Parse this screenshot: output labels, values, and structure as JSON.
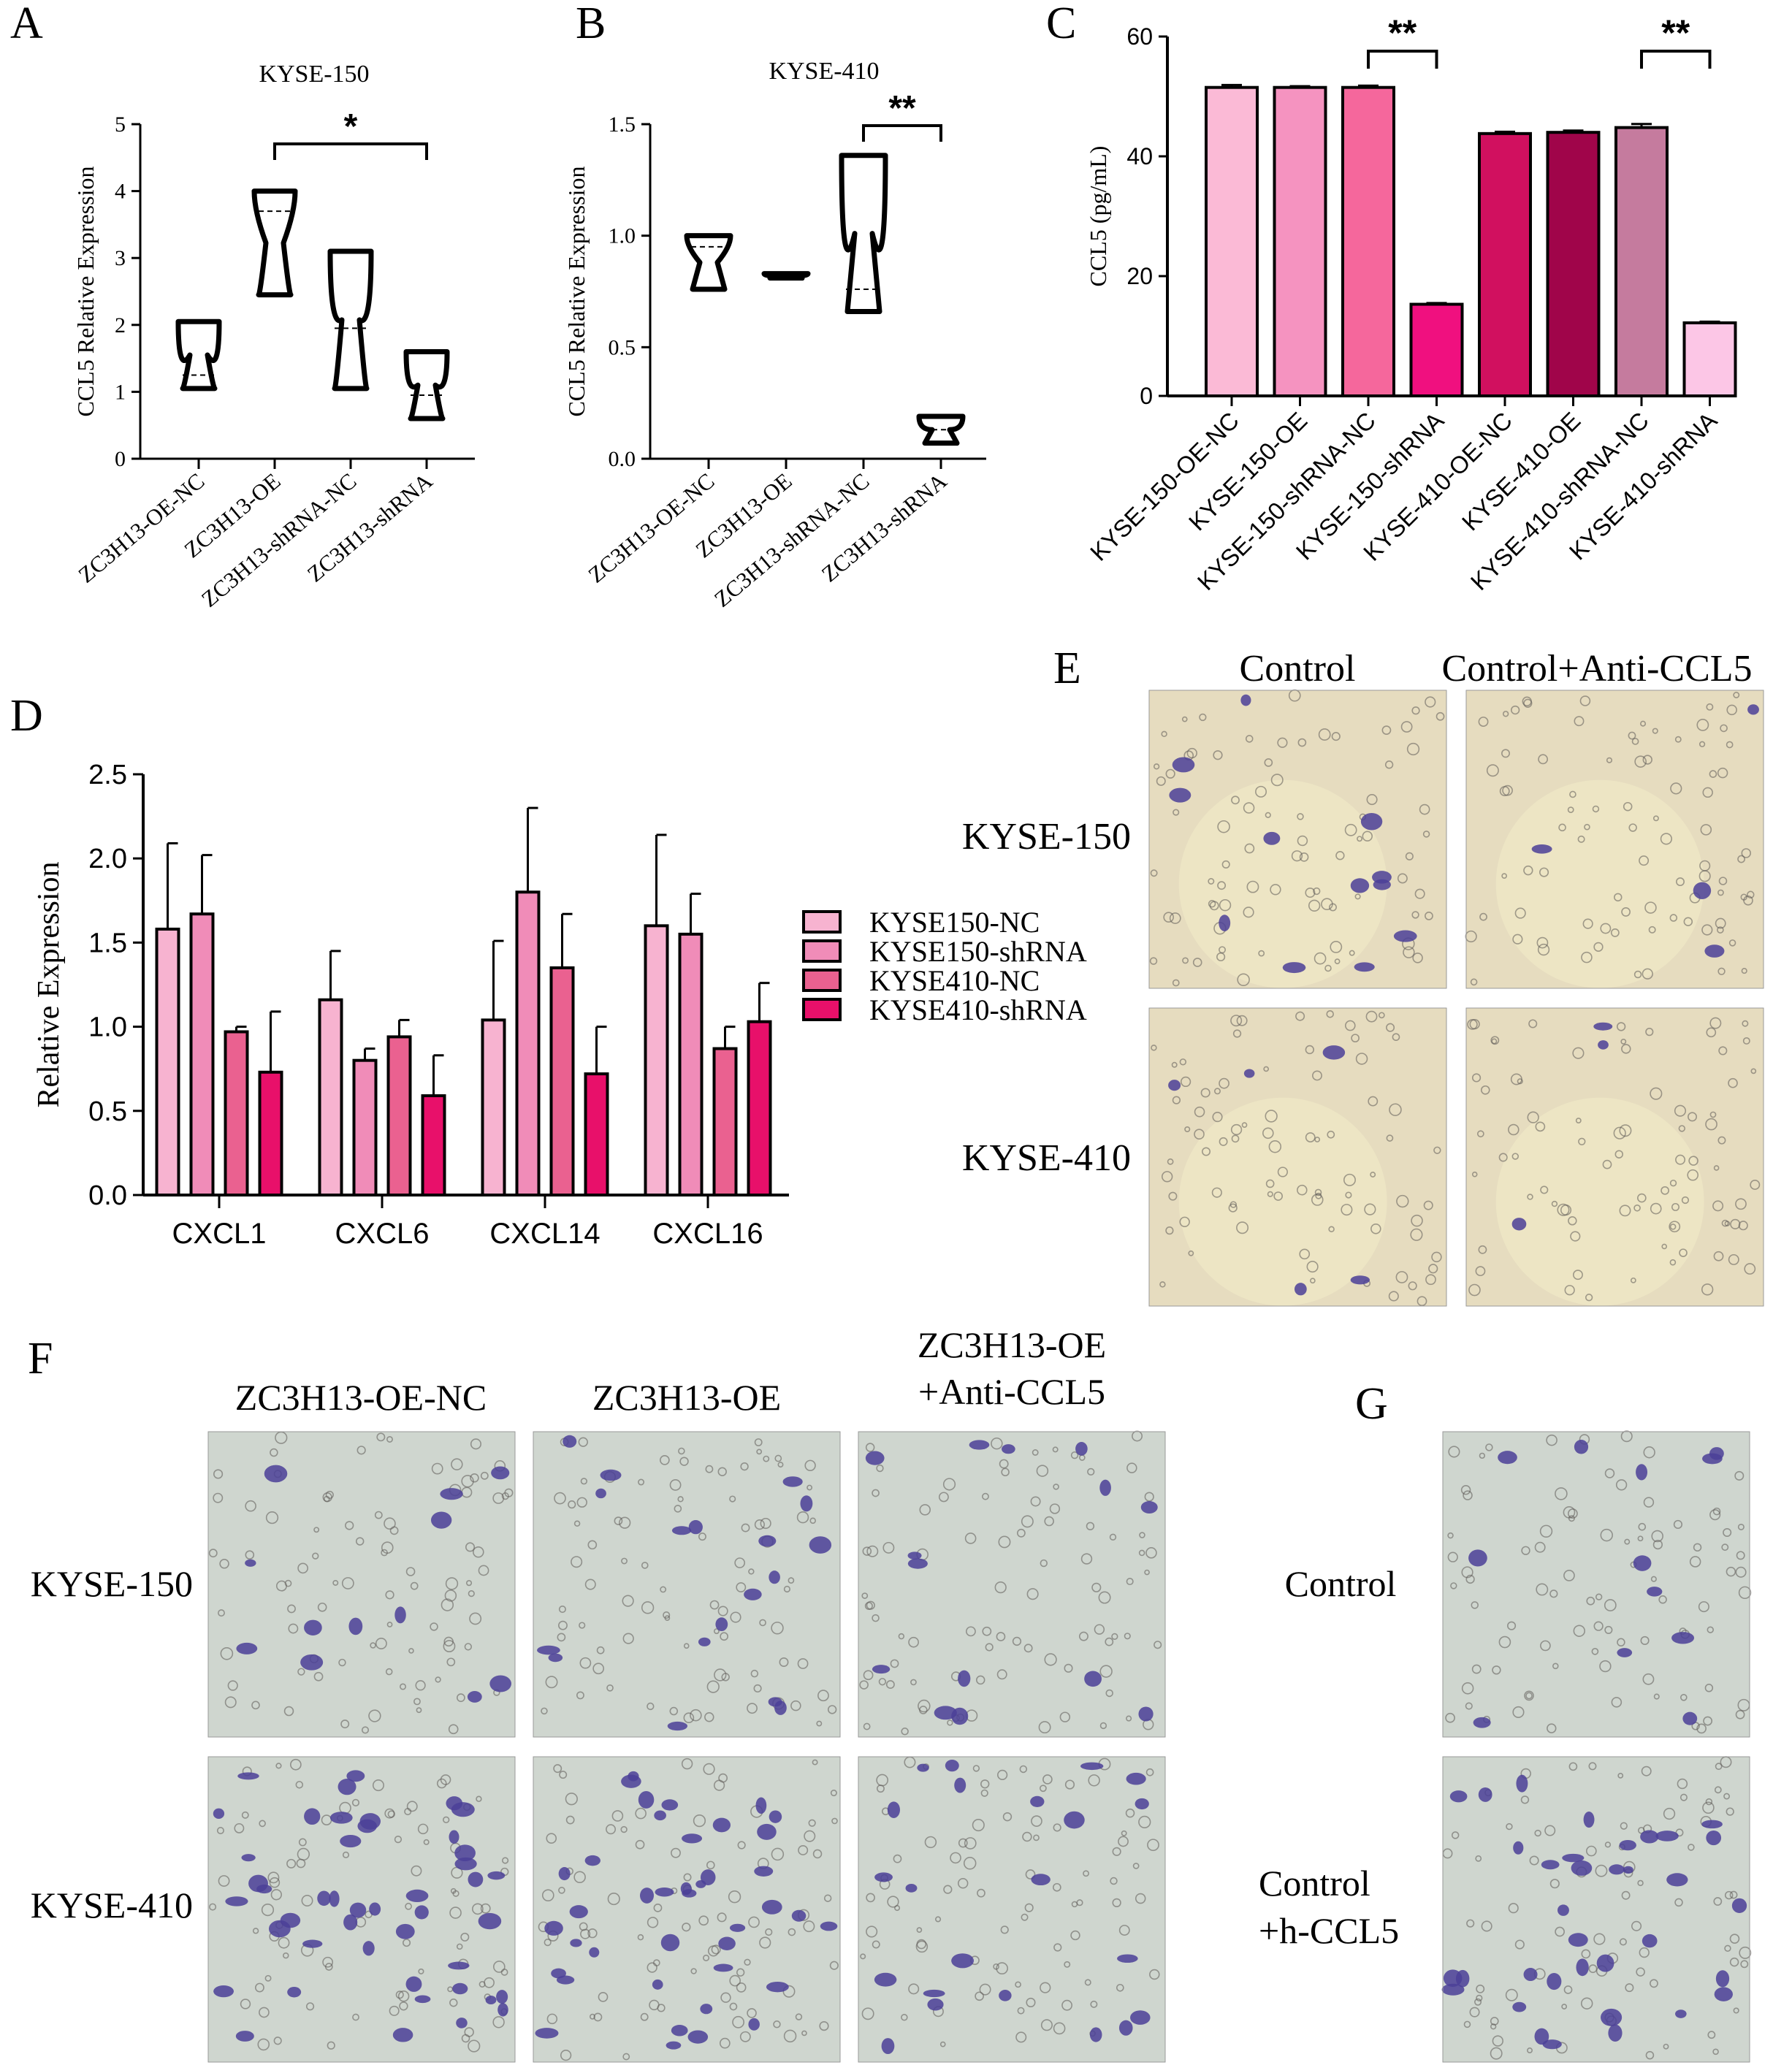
{
  "panel_letters": {
    "A": "A",
    "B": "B",
    "C": "C",
    "D": "D",
    "E": "E",
    "F": "F",
    "G": "G"
  },
  "colors": {
    "pink1": "#fbbad6",
    "pink2": "#f593c0",
    "pink3": "#f5679c",
    "pink4": "#f0107f",
    "magenta1": "#d1105f",
    "magenta2": "#a0054a",
    "mauve": "#c57b9e",
    "pink5": "#fcc6e6",
    "d1": "#f7b3d0",
    "d2": "#f08cb8",
    "d3": "#ea6190",
    "d4": "#e8106a",
    "field_yellow": "#e6dcbf",
    "field_gray": "#cfd6cf",
    "cell": "#4b3f98",
    "ring": "#5c5a55"
  },
  "chart_data": [
    {
      "type": "violin",
      "panel": "A",
      "title": "KYSE-150",
      "xlabel": "",
      "ylabel": "CCL5 Relative Expression",
      "ylim": [
        0,
        5
      ],
      "yticks": [
        "0",
        "1",
        "2",
        "3",
        "4",
        "5"
      ],
      "categories": [
        "ZC3H13-OE-NC",
        "ZC3H13-OE",
        "ZC3H13-shRNA-NC",
        "ZC3H13-shRNA"
      ],
      "ranges": [
        [
          1.05,
          2.05
        ],
        [
          2.45,
          4.0
        ],
        [
          1.05,
          3.1
        ],
        [
          0.6,
          1.6
        ]
      ],
      "medians": [
        1.25,
        3.7,
        1.95,
        0.95
      ],
      "significance": [
        {
          "from": 1,
          "to": 3,
          "label": "*"
        }
      ]
    },
    {
      "type": "violin",
      "panel": "B",
      "title": "KYSE-410",
      "xlabel": "",
      "ylabel": "CCL5 Relative Expression",
      "ylim": [
        0,
        1.5
      ],
      "yticks": [
        "0.0",
        "0.5",
        "1.0",
        "1.5"
      ],
      "categories": [
        "ZC3H13-OE-NC",
        "ZC3H13-OE",
        "ZC3H13-shRNA-NC",
        "ZC3H13-shRNA"
      ],
      "ranges": [
        [
          0.76,
          1.0
        ],
        [
          0.81,
          0.83
        ],
        [
          0.66,
          1.36
        ],
        [
          0.07,
          0.19
        ]
      ],
      "medians": [
        0.95,
        0.82,
        0.76,
        0.13
      ],
      "significance": [
        {
          "from": 2,
          "to": 3,
          "label": "**"
        }
      ]
    },
    {
      "type": "bar",
      "panel": "C",
      "title": "",
      "xlabel": "",
      "ylabel": "CCL5 (pg/mL)",
      "ylim": [
        0,
        60
      ],
      "yticks": [
        "0",
        "20",
        "40",
        "60"
      ],
      "categories": [
        "KYSE-150-OE-NC",
        "KYSE-150-OE",
        "KYSE-150-shRNA-NC",
        "KYSE-150-shRNA",
        "KYSE-410-OE-NC",
        "KYSE-410-OE",
        "KYSE-410-shRNA-NC",
        "KYSE-410-shRNA"
      ],
      "values": [
        51.5,
        51.5,
        51.5,
        15.3,
        43.8,
        44.0,
        44.8,
        12.2
      ],
      "errors": [
        0.4,
        0.2,
        0.3,
        0.2,
        0.3,
        0.3,
        0.6,
        0.2
      ],
      "significance": [
        {
          "from": 2,
          "to": 3,
          "label": "**"
        },
        {
          "from": 6,
          "to": 7,
          "label": "**"
        }
      ]
    },
    {
      "type": "bar",
      "panel": "D",
      "title": "",
      "xlabel": "",
      "ylabel": "Relative Expression",
      "ylim": [
        0,
        2.5
      ],
      "yticks": [
        "0.0",
        "0.5",
        "1.0",
        "1.5",
        "2.0",
        "2.5"
      ],
      "categories": [
        "CXCL1",
        "CXCL6",
        "CXCL14",
        "CXCL16"
      ],
      "legend_position": "right",
      "series": [
        {
          "name": "KYSE150-NC",
          "values": [
            1.58,
            1.16,
            1.04,
            1.6
          ],
          "errors": [
            0.51,
            0.29,
            0.47,
            0.54
          ]
        },
        {
          "name": "KYSE150-shRNA",
          "values": [
            1.67,
            0.8,
            1.8,
            1.55
          ],
          "errors": [
            0.35,
            0.07,
            0.5,
            0.24
          ]
        },
        {
          "name": "KYSE410-NC",
          "values": [
            0.97,
            0.94,
            1.35,
            0.87
          ],
          "errors": [
            0.03,
            0.1,
            0.32,
            0.13
          ]
        },
        {
          "name": "KYSE410-shRNA",
          "values": [
            0.73,
            0.59,
            0.72,
            1.03
          ],
          "errors": [
            0.36,
            0.24,
            0.28,
            0.23
          ]
        }
      ]
    }
  ],
  "panel_e": {
    "columns": [
      "Control",
      "Control+Anti-CCL5"
    ],
    "rows": [
      "KYSE-150",
      "KYSE-410"
    ],
    "stained_cells": [
      [
        12,
        4
      ],
      [
        5,
        3
      ]
    ]
  },
  "panel_f": {
    "columns": [
      [
        "ZC3H13-OE-NC"
      ],
      [
        "ZC3H13-OE"
      ],
      [
        "ZC3H13-OE",
        "+Anti-CCL5"
      ]
    ],
    "rows": [
      "KYSE-150",
      "KYSE-410"
    ],
    "stained_cells": [
      [
        12,
        45
      ],
      [
        18,
        40
      ],
      [
        14,
        22
      ]
    ]
  },
  "panel_g": {
    "rows": [
      [
        "Control"
      ],
      [
        "Control",
        "+h-CCL5"
      ]
    ],
    "stained_cells": [
      12,
      35
    ]
  }
}
